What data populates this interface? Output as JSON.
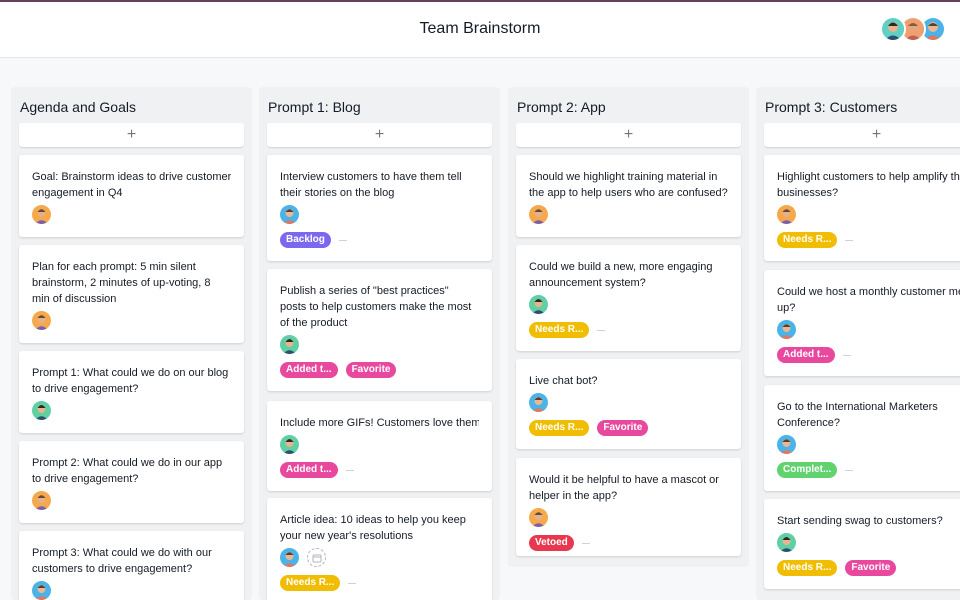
{
  "header": {
    "title": "Team Brainstorm"
  },
  "colors": {
    "backlog": "#7b68ee",
    "needs_review": "#f1bd00",
    "added": "#e8499f",
    "favorite": "#e8499f",
    "complete": "#62d26f",
    "vetoed": "#e8384f"
  },
  "columns": [
    {
      "title": "Agenda and Goals",
      "add_label": "+",
      "cards": [
        {
          "lines": [
            "Goal: Brainstorm ideas to drive customer",
            "engagement in Q4"
          ],
          "tags": []
        },
        {
          "lines": [
            "Plan for each prompt: 5 min silent",
            "brainstorm, 2 minutes of up-voting, 8",
            "min of discussion"
          ],
          "tags": []
        },
        {
          "lines": [
            "Prompt 1: What could we do on our blog",
            "to drive engagement?"
          ],
          "tags": []
        },
        {
          "lines": [
            "Prompt 2: What could we do in our app",
            "to drive engagement?"
          ],
          "tags": []
        },
        {
          "lines": [
            "Prompt 3: What could we do with our",
            "customers to drive engagement?"
          ],
          "tags": []
        }
      ]
    },
    {
      "title": "Prompt 1: Blog",
      "add_label": "+",
      "cards": [
        {
          "lines": [
            "Interview customers to have them tell",
            "their stories on the blog"
          ],
          "tags": [
            "Backlog"
          ]
        },
        {
          "lines": [
            "Publish a series of \"best practices\"",
            "posts to help customers make the most",
            "of the product"
          ],
          "tags": [
            "Added t...",
            "Favorite"
          ]
        },
        {
          "lines": [
            "Include more GIFs! Customers love them"
          ],
          "tags": [
            "Added t..."
          ]
        },
        {
          "lines": [
            "Article idea: 10 ideas to help you keep",
            "your new year's resolutions"
          ],
          "tags": [
            "Needs R..."
          ]
        }
      ]
    },
    {
      "title": "Prompt 2: App",
      "add_label": "+",
      "cards": [
        {
          "lines": [
            "Should we highlight training material in",
            "the app to help users who are confused?"
          ],
          "tags": []
        },
        {
          "lines": [
            "Could we build a new, more engaging",
            "announcement system?"
          ],
          "tags": [
            "Needs R..."
          ]
        },
        {
          "lines": [
            "Live chat bot?"
          ],
          "tags": [
            "Needs R...",
            "Favorite"
          ]
        },
        {
          "lines": [
            "Would it be helpful to have a mascot or",
            "helper in the app?"
          ],
          "tags": [
            "Vetoed"
          ]
        }
      ]
    },
    {
      "title": "Prompt 3: Customers",
      "add_label": "+",
      "cards": [
        {
          "lines": [
            "Highlight customers to help amplify their",
            "businesses?"
          ],
          "tags": [
            "Needs R..."
          ]
        },
        {
          "lines": [
            "Could we host a monthly customer meet",
            "up?"
          ],
          "tags": [
            "Added t..."
          ]
        },
        {
          "lines": [
            "Go to the International Marketers",
            "Conference?"
          ],
          "tags": [
            "Complet..."
          ]
        },
        {
          "lines": [
            "Start sending swag to customers?"
          ],
          "tags": [
            "Needs R...",
            "Favorite"
          ]
        }
      ]
    }
  ]
}
